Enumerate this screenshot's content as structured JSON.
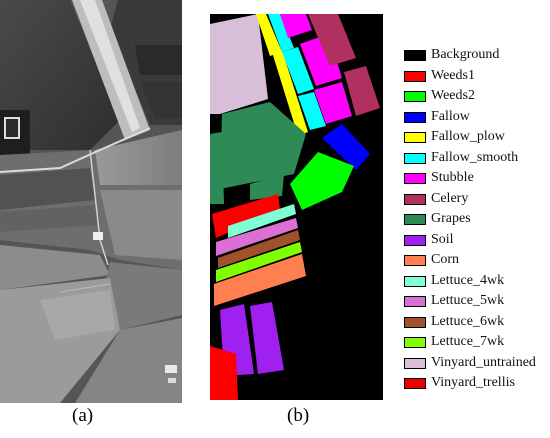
{
  "captions": {
    "a": "(a)",
    "b": "(b)"
  },
  "legend": [
    {
      "label": "Background",
      "color": "#000000"
    },
    {
      "label": "Weeds1",
      "color": "#ff0000"
    },
    {
      "label": "Weeds2",
      "color": "#00ff00"
    },
    {
      "label": "Fallow",
      "color": "#0000ff"
    },
    {
      "label": "Fallow_plow",
      "color": "#ffff00"
    },
    {
      "label": "Fallow_smooth",
      "color": "#00ffff"
    },
    {
      "label": "Stubble",
      "color": "#ff00ff"
    },
    {
      "label": "Celery",
      "color": "#b03060"
    },
    {
      "label": "Grapes",
      "color": "#2e8b57"
    },
    {
      "label": "Soil",
      "color": "#a020f0"
    },
    {
      "label": "Corn",
      "color": "#ff7f50"
    },
    {
      "label": "Lettuce_4wk",
      "color": "#7fffd4"
    },
    {
      "label": "Lettuce_5wk",
      "color": "#da70d6"
    },
    {
      "label": "Lettuce_6wk",
      "color": "#a0522d"
    },
    {
      "label": "Lettuce_7wk",
      "color": "#7fff00"
    },
    {
      "label": "Vinyard_untrained",
      "color": "#d8bfd8"
    },
    {
      "label": "Vinyard_trellis",
      "color": "#ee0000"
    }
  ]
}
